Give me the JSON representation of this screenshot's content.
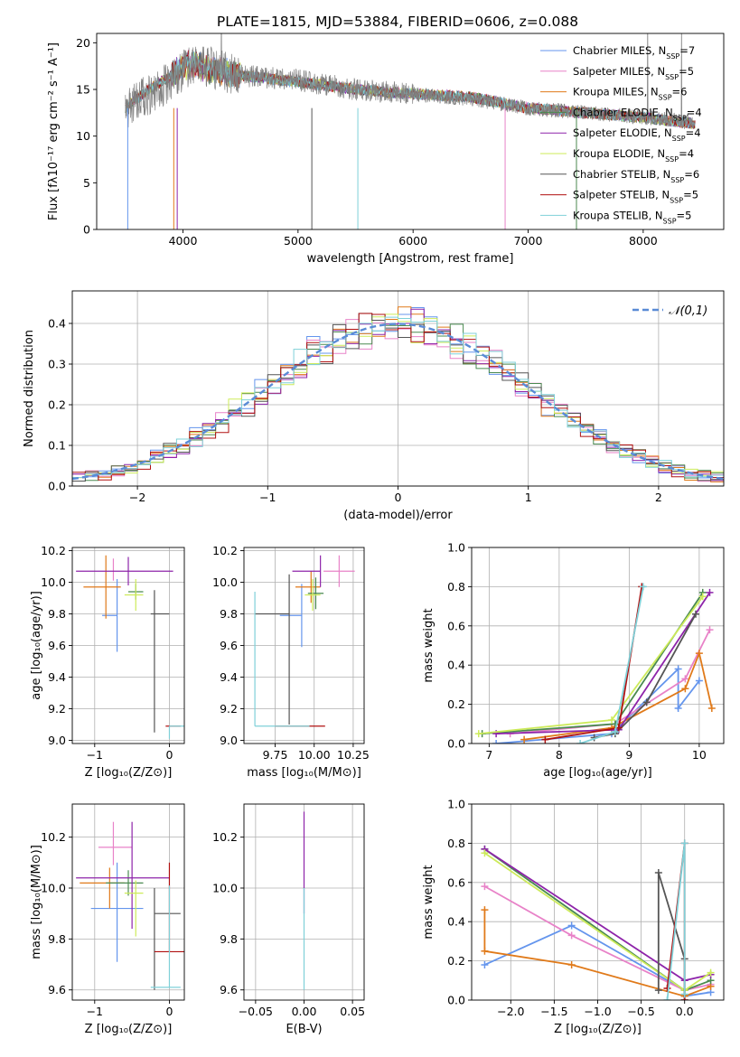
{
  "figure_title": "PLATE=1815, MJD=53884, FIBERID=0606, z=0.088",
  "models": [
    {
      "name": "Chabrier MILES",
      "n": "7",
      "color": "#6495ED"
    },
    {
      "name": "Salpeter MILES",
      "n": "5",
      "color": "#E882C8"
    },
    {
      "name": "Kroupa MILES",
      "n": "6",
      "color": "#E07A1A"
    },
    {
      "name": "Chabrier ELODIE",
      "n": "4",
      "color": "#4A8A50"
    },
    {
      "name": "Salpeter ELODIE",
      "n": "4",
      "color": "#8E24AA"
    },
    {
      "name": "Kroupa ELODIE",
      "n": "4",
      "color": "#CDEB5A"
    },
    {
      "name": "Chabrier STELIB",
      "n": "6",
      "color": "#555555"
    },
    {
      "name": "Salpeter STELIB",
      "n": "5",
      "color": "#B01010"
    },
    {
      "name": "Kroupa STELIB",
      "n": "5",
      "color": "#7FD0D8"
    }
  ],
  "chart_data": [
    {
      "type": "line",
      "id": "spectrum",
      "xlabel": "wavelength [Angstrom, rest frame]",
      "ylabel": "Flux [fλ10⁻¹⁷ erg cm⁻² s⁻¹ A⁻¹]",
      "xlim": [
        3250,
        8700
      ],
      "ylim": [
        0,
        21
      ],
      "xticks": [
        4000,
        5000,
        6000,
        7000,
        8000
      ],
      "yticks": [
        0,
        5,
        10,
        15,
        20
      ],
      "observed_continuum": {
        "x": [
          3500,
          3700,
          3900,
          4050,
          4200,
          4500,
          5000,
          5500,
          6000,
          6500,
          7000,
          7500,
          8000,
          8450
        ],
        "y": [
          13,
          14.5,
          16,
          17.5,
          17.5,
          16.5,
          16,
          15,
          14.5,
          14,
          13,
          12.5,
          12,
          11.5
        ]
      },
      "model_continuum": {
        "x": [
          3500,
          3700,
          3900,
          4050,
          4200,
          4500,
          5000,
          5500,
          6000,
          6500,
          7000,
          7500,
          8000,
          8450
        ],
        "y": [
          13,
          15,
          16.5,
          17.8,
          17.2,
          16.5,
          15.8,
          15,
          14.5,
          14.2,
          13,
          12.5,
          12,
          11.3
        ]
      },
      "deep_dips_x": [
        3520,
        3920,
        3950,
        5120,
        5520,
        6800,
        7420
      ],
      "legend_position": "upper right",
      "grid": false
    },
    {
      "type": "step",
      "id": "residual-histogram",
      "xlabel": "(data-model)/error",
      "ylabel": "Normed distribution",
      "xlim": [
        -2.5,
        2.5
      ],
      "ylim": [
        0,
        0.48
      ],
      "xticks": [
        -2,
        -1,
        0,
        1,
        2
      ],
      "yticks": [
        0.0,
        0.1,
        0.2,
        0.3,
        0.4
      ],
      "reference_curve": {
        "name": "𝒩(0,1)",
        "mu": 0,
        "sigma": 1,
        "amplitude": 0.3989,
        "style": "dashed",
        "color": "#5A8BD6"
      },
      "legend_position": "upper right",
      "grid": true
    },
    {
      "type": "errorbar",
      "id": "age-vs-Z",
      "xlabel": "Z [log₁₀(Z/Z⊙)]",
      "ylabel": "age  [log₁₀(age/yr)]",
      "xlim": [
        -1.3,
        0.2
      ],
      "ylim": [
        8.98,
        10.22
      ],
      "xticks": [
        -1,
        0
      ],
      "yticks": [
        9.0,
        9.2,
        9.4,
        9.6,
        9.8,
        10.0,
        10.2
      ],
      "points": [
        {
          "x": -0.7,
          "y": 9.79,
          "xerr": [
            0.2,
            0.0
          ],
          "yerr": [
            0.23,
            0.23
          ]
        },
        {
          "x": -0.75,
          "y": 10.08,
          "xerr": [
            0.0,
            0.0
          ],
          "yerr": [
            0.07,
            0.07
          ]
        },
        {
          "x": -0.85,
          "y": 9.97,
          "xerr": [
            0.3,
            0.2
          ],
          "yerr": [
            0.2,
            0.2
          ]
        },
        {
          "x": -0.45,
          "y": 9.94,
          "xerr": [
            0.1,
            0.1
          ],
          "yerr": [
            0.05,
            0.05
          ]
        },
        {
          "x": -0.55,
          "y": 10.07,
          "xerr": [
            0.7,
            0.6
          ],
          "yerr": [
            0.09,
            0.09
          ]
        },
        {
          "x": -0.45,
          "y": 9.92,
          "xerr": [
            0.15,
            0.1
          ],
          "yerr": [
            0.1,
            0.1
          ]
        },
        {
          "x": -0.2,
          "y": 9.8,
          "xerr": [
            0.05,
            0.2
          ],
          "yerr": [
            0.75,
            0.15
          ]
        },
        {
          "x": 0.0,
          "y": 9.09,
          "xerr": [
            0.05,
            0.15
          ],
          "yerr": [
            0.0,
            0.0
          ]
        },
        {
          "x": 0.0,
          "y": 9.09,
          "xerr": [
            0.0,
            0.2
          ],
          "yerr": [
            0.08,
            0.0
          ]
        }
      ],
      "grid": true
    },
    {
      "type": "errorbar",
      "id": "age-vs-mass",
      "xlabel": "mass [log₁₀(M/M⊙)]",
      "ylabel": "",
      "xlim": [
        9.55,
        10.32
      ],
      "ylim": [
        8.98,
        10.22
      ],
      "xticks": [
        9.75,
        10.0,
        10.25
      ],
      "xticklabels": [
        "9.75",
        "10.00",
        "10.25"
      ],
      "yticks": [
        9.0,
        9.2,
        9.4,
        9.6,
        9.8,
        10.0,
        10.2
      ],
      "points": [
        {
          "x": 9.92,
          "y": 9.79,
          "xerr": [
            0.14,
            0.0
          ],
          "yerr": [
            0.2,
            0.2
          ]
        },
        {
          "x": 10.16,
          "y": 10.07,
          "xerr": [
            0.1,
            0.1
          ],
          "yerr": [
            0.1,
            0.1
          ]
        },
        {
          "x": 9.98,
          "y": 9.97,
          "xerr": [
            0.1,
            0.06
          ],
          "yerr": [
            0.1,
            0.1
          ]
        },
        {
          "x": 10.01,
          "y": 9.93,
          "xerr": [
            0.05,
            0.05
          ],
          "yerr": [
            0.1,
            0.1
          ]
        },
        {
          "x": 10.04,
          "y": 10.07,
          "xerr": [
            0.18,
            0.0
          ],
          "yerr": [
            0.1,
            0.1
          ]
        },
        {
          "x": 9.99,
          "y": 9.92,
          "xerr": [
            0.05,
            0.05
          ],
          "yerr": [
            0.1,
            0.1
          ]
        },
        {
          "x": 9.84,
          "y": 9.8,
          "xerr": [
            0.22,
            0.0
          ],
          "yerr": [
            0.7,
            0.25
          ]
        },
        {
          "x": 9.75,
          "y": 9.09,
          "xerr": [
            0.0,
            0.32
          ],
          "yerr": [
            0.0,
            0.0
          ]
        },
        {
          "x": 9.62,
          "y": 9.09,
          "xerr": [
            0.0,
            0.35
          ],
          "yerr": [
            0.0,
            0.85
          ]
        }
      ],
      "grid": true
    },
    {
      "type": "line",
      "id": "massweight-vs-age",
      "xlabel": "age  [log₁₀(age/yr)]",
      "ylabel": "mass weight",
      "xlim": [
        6.75,
        10.35
      ],
      "ylim": [
        0,
        1
      ],
      "xticks": [
        7,
        8,
        9,
        10
      ],
      "yticks": [
        0.0,
        0.2,
        0.4,
        0.6,
        0.8,
        1.0
      ],
      "series": [
        {
          "x": [
            7.1,
            8.75,
            9.7,
            9.7,
            10.0
          ],
          "y": [
            0.0,
            0.05,
            0.38,
            0.18,
            0.32
          ]
        },
        {
          "x": [
            7.3,
            8.8,
            9.8,
            10.15
          ],
          "y": [
            0.05,
            0.1,
            0.33,
            0.58
          ]
        },
        {
          "x": [
            7.5,
            8.75,
            9.8,
            10.0,
            10.18
          ],
          "y": [
            0.02,
            0.08,
            0.28,
            0.46,
            0.18
          ]
        },
        {
          "x": [
            6.9,
            8.8,
            10.05
          ],
          "y": [
            0.05,
            0.1,
            0.77
          ]
        },
        {
          "x": [
            7.1,
            8.85,
            10.15
          ],
          "y": [
            0.05,
            0.07,
            0.77
          ]
        },
        {
          "x": [
            6.85,
            8.75,
            10.05
          ],
          "y": [
            0.05,
            0.12,
            0.75
          ]
        },
        {
          "x": [
            8.5,
            8.8,
            9.25,
            9.95
          ],
          "y": [
            0.03,
            0.05,
            0.21,
            0.66
          ]
        },
        {
          "x": [
            7.8,
            8.85,
            9.18
          ],
          "y": [
            0.02,
            0.08,
            0.8
          ]
        },
        {
          "x": [
            8.3,
            8.8,
            9.2
          ],
          "y": [
            0.0,
            0.06,
            0.8
          ]
        }
      ],
      "grid": true
    },
    {
      "type": "errorbar",
      "id": "mass-vs-Z",
      "xlabel": "Z [log₁₀(Z/Z⊙)]",
      "ylabel": "mass [log₁₀(M/M⊙)]",
      "xlim": [
        -1.3,
        0.2
      ],
      "ylim": [
        9.56,
        10.33
      ],
      "xticks": [
        -1,
        0
      ],
      "yticks": [
        9.6,
        9.8,
        10.0,
        10.2
      ],
      "points": [
        {
          "x": -0.7,
          "y": 9.92,
          "xerr": [
            0.35,
            0.35
          ],
          "yerr": [
            0.21,
            0.18
          ]
        },
        {
          "x": -0.75,
          "y": 10.16,
          "xerr": [
            0.2,
            0.25
          ],
          "yerr": [
            0.07,
            0.1
          ]
        },
        {
          "x": -0.8,
          "y": 10.02,
          "xerr": [
            0.4,
            0.2
          ],
          "yerr": [
            0.1,
            0.06
          ]
        },
        {
          "x": -0.55,
          "y": 10.02,
          "xerr": [
            0.3,
            0.2
          ],
          "yerr": [
            0.05,
            0.05
          ]
        },
        {
          "x": -0.5,
          "y": 10.04,
          "xerr": [
            0.75,
            0.5
          ],
          "yerr": [
            0.2,
            0.22
          ]
        },
        {
          "x": -0.45,
          "y": 9.98,
          "xerr": [
            0.15,
            0.1
          ],
          "yerr": [
            0.17,
            0.05
          ]
        },
        {
          "x": -0.2,
          "y": 9.9,
          "xerr": [
            0.0,
            0.35
          ],
          "yerr": [
            0.3,
            0.1
          ]
        },
        {
          "x": 0.0,
          "y": 9.75,
          "xerr": [
            0.2,
            0.2
          ],
          "yerr": [
            0.0,
            0.35
          ]
        },
        {
          "x": 0.0,
          "y": 9.61,
          "xerr": [
            0.25,
            0.15
          ],
          "yerr": [
            0.0,
            0.4
          ]
        }
      ],
      "grid": true
    },
    {
      "type": "errorbar",
      "id": "mass-vs-ebv",
      "xlabel": "E(B-V)",
      "ylabel": "",
      "xlim": [
        -0.062,
        0.062
      ],
      "ylim": [
        9.56,
        10.33
      ],
      "xticks": [
        -0.05,
        0.0,
        0.05
      ],
      "xticklabels": [
        "−0.05",
        "0.00",
        "0.05"
      ],
      "yticks": [
        9.6,
        9.8,
        10.0,
        10.2
      ],
      "points": [
        {
          "x": 0.0,
          "y": 10.1,
          "yerr": [
            0.2,
            0.2
          ]
        },
        {
          "x": 0.0,
          "y": 9.8,
          "yerr": [
            0.2,
            0.2
          ]
        }
      ],
      "grid": true
    },
    {
      "type": "line",
      "id": "massweight-vs-Z",
      "xlabel": "Z [log₁₀(Z/Z⊙)]",
      "ylabel": "mass weight",
      "xlim": [
        -2.45,
        0.45
      ],
      "ylim": [
        0,
        1
      ],
      "xticks": [
        -2.0,
        -1.5,
        -1.0,
        -0.5,
        0.0
      ],
      "xticklabels": [
        "−2.0",
        "−1.5",
        "−1.0",
        "−0.5",
        "0.0"
      ],
      "yticks": [
        0.0,
        0.2,
        0.4,
        0.6,
        0.8,
        1.0
      ],
      "series": [
        {
          "x": [
            -2.3,
            -1.3,
            0.0,
            0.0,
            0.3
          ],
          "y": [
            0.18,
            0.38,
            0.05,
            0.02,
            0.04
          ]
        },
        {
          "x": [
            -2.3,
            -1.3,
            0.0,
            0.3
          ],
          "y": [
            0.58,
            0.33,
            0.05,
            0.08
          ]
        },
        {
          "x": [
            -2.3,
            -2.3,
            -1.3,
            0.0,
            0.3
          ],
          "y": [
            0.46,
            0.25,
            0.18,
            0.02,
            0.07
          ]
        },
        {
          "x": [
            -2.3,
            0.0,
            0.3
          ],
          "y": [
            0.77,
            0.05,
            0.1
          ]
        },
        {
          "x": [
            -2.3,
            0.0,
            0.3
          ],
          "y": [
            0.77,
            0.1,
            0.13
          ]
        },
        {
          "x": [
            -2.3,
            0.0,
            0.3
          ],
          "y": [
            0.75,
            0.05,
            0.14
          ]
        },
        {
          "x": [
            -0.3,
            -0.3,
            0.0,
            0.0
          ],
          "y": [
            0.05,
            0.65,
            0.21,
            0.0
          ]
        },
        {
          "x": [
            -0.2,
            0.0,
            0.0
          ],
          "y": [
            0.06,
            0.8,
            0.0
          ]
        },
        {
          "x": [
            -0.2,
            0.0,
            0.0
          ],
          "y": [
            0.0,
            0.8,
            0.03
          ]
        }
      ],
      "grid": true
    }
  ]
}
